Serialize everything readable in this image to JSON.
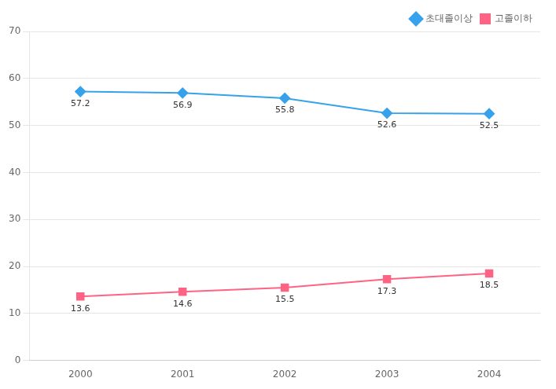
{
  "chart_data": {
    "type": "line",
    "x": [
      2000,
      2001,
      2002,
      2003,
      2004
    ],
    "series": [
      {
        "name": "초대졸이상",
        "values": [
          57.2,
          56.9,
          55.8,
          52.6,
          52.5
        ],
        "marker": "diamond"
      },
      {
        "name": "고졸이하",
        "values": [
          13.6,
          14.6,
          15.5,
          17.3,
          18.5
        ],
        "marker": "square"
      }
    ],
    "xlim": [
      1999.5,
      2004.5
    ],
    "xticks": [
      2000,
      2001,
      2002,
      2003,
      2004
    ],
    "ylim": [
      0,
      70
    ],
    "yticks": [
      0,
      10,
      20,
      30,
      40,
      50,
      60,
      70
    ],
    "grid": true,
    "legend": "upper right",
    "data_labels": true
  }
}
